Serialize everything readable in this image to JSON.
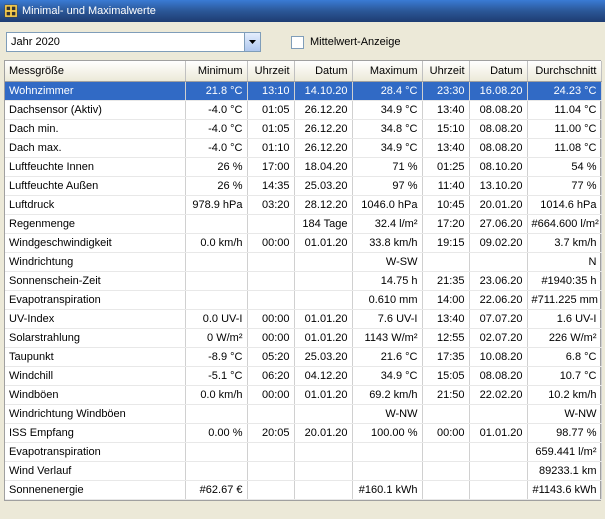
{
  "window": {
    "title": "Minimal- und Maximalwerte"
  },
  "toolbar": {
    "year_selector": "Jahr 2020",
    "checkbox_label": "Mittelwert-Anzeige"
  },
  "table": {
    "columns": [
      "Messgröße",
      "Minimum",
      "Uhrzeit",
      "Datum",
      "Maximum",
      "Uhrzeit",
      "Datum",
      "Durchschnitt"
    ],
    "selected_index": 0,
    "rows": [
      [
        "Wohnzimmer",
        "21.8 °C",
        "13:10",
        "14.10.20",
        "28.4 °C",
        "23:30",
        "16.08.20",
        "24.23 °C"
      ],
      [
        "Dachsensor (Aktiv)",
        "-4.0 °C",
        "01:05",
        "26.12.20",
        "34.9 °C",
        "13:40",
        "08.08.20",
        "11.04 °C"
      ],
      [
        "Dach min.",
        "-4.0 °C",
        "01:05",
        "26.12.20",
        "34.8 °C",
        "15:10",
        "08.08.20",
        "11.00 °C"
      ],
      [
        "Dach max.",
        "-4.0 °C",
        "01:10",
        "26.12.20",
        "34.9 °C",
        "13:40",
        "08.08.20",
        "11.08 °C"
      ],
      [
        "Luftfeuchte Innen",
        "26 %",
        "17:00",
        "18.04.20",
        "71 %",
        "01:25",
        "08.10.20",
        "54 %"
      ],
      [
        "Luftfeuchte Außen",
        "26 %",
        "14:35",
        "25.03.20",
        "97 %",
        "11:40",
        "13.10.20",
        "77 %"
      ],
      [
        "Luftdruck",
        "978.9 hPa",
        "03:20",
        "28.12.20",
        "1046.0 hPa",
        "10:45",
        "20.01.20",
        "1014.6 hPa"
      ],
      [
        "Regenmenge",
        "",
        "",
        "184 Tage",
        "32.4 l/m²",
        "17:20",
        "27.06.20",
        "#664.600 l/m²"
      ],
      [
        "Windgeschwindigkeit",
        "0.0 km/h",
        "00:00",
        "01.01.20",
        "33.8 km/h",
        "19:15",
        "09.02.20",
        "3.7 km/h"
      ],
      [
        "Windrichtung",
        "",
        "",
        "",
        "W-SW",
        "",
        "",
        "N"
      ],
      [
        "Sonnenschein-Zeit",
        "",
        "",
        "",
        "14.75 h",
        "21:35",
        "23.06.20",
        "#1940:35 h"
      ],
      [
        "Evapotranspiration",
        "",
        "",
        "",
        "0.610 mm",
        "14:00",
        "22.06.20",
        "#711.225 mm"
      ],
      [
        "UV-Index",
        "0.0 UV-I",
        "00:00",
        "01.01.20",
        "7.6 UV-I",
        "13:40",
        "07.07.20",
        "1.6 UV-I"
      ],
      [
        "Solarstrahlung",
        "0 W/m²",
        "00:00",
        "01.01.20",
        "1143 W/m²",
        "12:55",
        "02.07.20",
        "226 W/m²"
      ],
      [
        "Taupunkt",
        "-8.9 °C",
        "05:20",
        "25.03.20",
        "21.6 °C",
        "17:35",
        "10.08.20",
        "6.8 °C"
      ],
      [
        "Windchill",
        "-5.1 °C",
        "06:20",
        "04.12.20",
        "34.9 °C",
        "15:05",
        "08.08.20",
        "10.7 °C"
      ],
      [
        "Windböen",
        "0.0 km/h",
        "00:00",
        "01.01.20",
        "69.2 km/h",
        "21:50",
        "22.02.20",
        "10.2 km/h"
      ],
      [
        "Windrichtung Windböen",
        "",
        "",
        "",
        "W-NW",
        "",
        "",
        "W-NW"
      ],
      [
        "ISS Empfang",
        "0.00 %",
        "20:05",
        "20.01.20",
        "100.00 %",
        "00:00",
        "01.01.20",
        "98.77 %"
      ],
      [
        "Evapotranspiration",
        "",
        "",
        "",
        "",
        "",
        "",
        "659.441 l/m²"
      ],
      [
        "Wind Verlauf",
        "",
        "",
        "",
        "",
        "",
        "",
        "89233.1 km"
      ],
      [
        "Sonnenenergie",
        "#62.67 €",
        "",
        "",
        "#160.1 kWh",
        "",
        "",
        "#1143.6 kWh"
      ]
    ]
  }
}
